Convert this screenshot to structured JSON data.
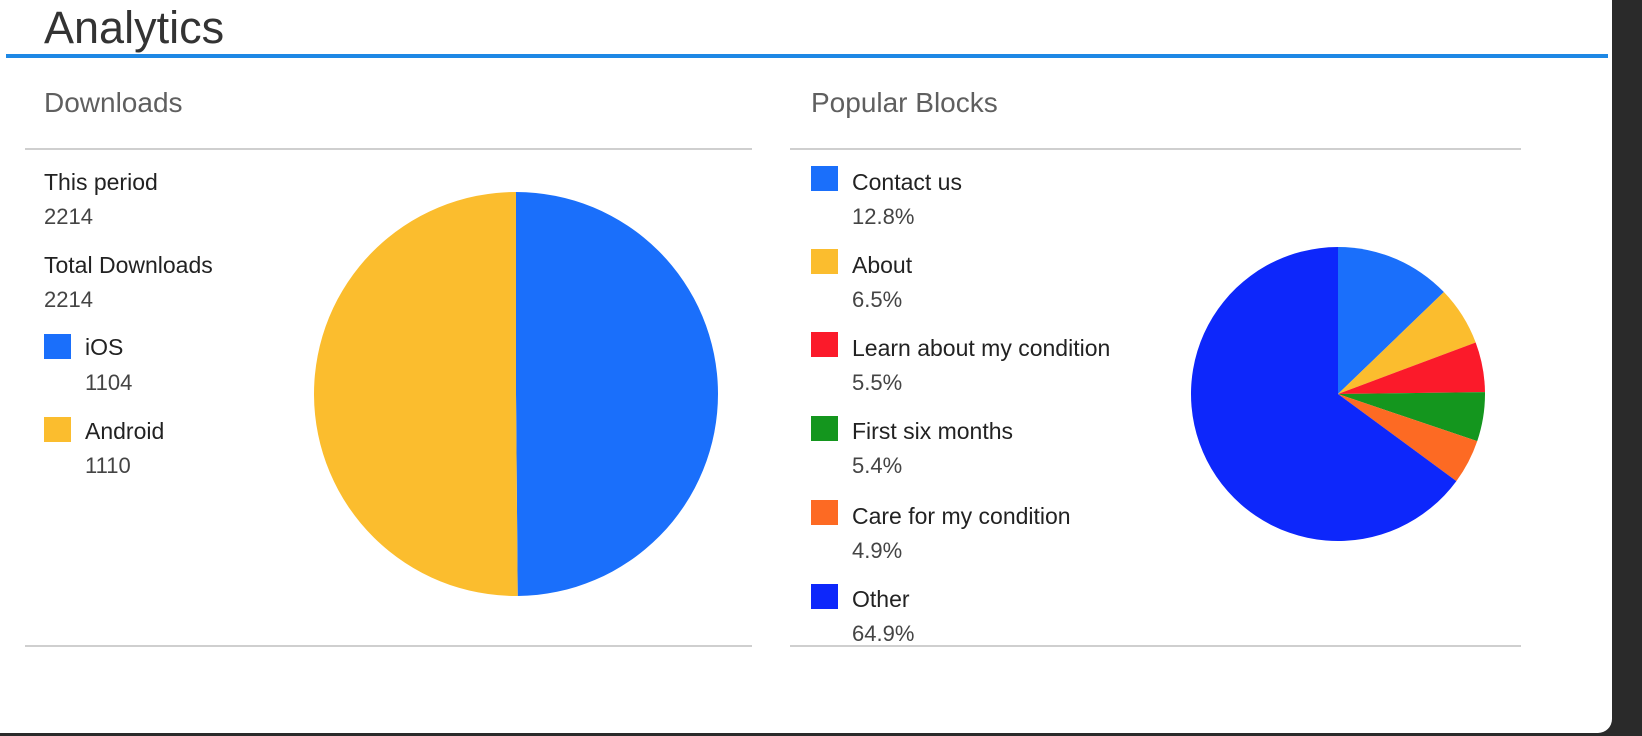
{
  "page": {
    "title": "Analytics"
  },
  "downloads": {
    "title": "Downloads",
    "this_period_label": "This period",
    "this_period_value": "2214",
    "total_label": "Total Downloads",
    "total_value": "2214"
  },
  "popular": {
    "title": "Popular Blocks"
  },
  "chart_data": [
    {
      "type": "pie",
      "title": "Downloads",
      "legend_position": "left",
      "slices": [
        {
          "label": "iOS",
          "value": 1104,
          "display": "1104",
          "color": "#1a6ffb"
        },
        {
          "label": "Android",
          "value": 1110,
          "display": "1110",
          "color": "#fbbd2e"
        }
      ]
    },
    {
      "type": "pie",
      "title": "Popular Blocks",
      "legend_position": "left",
      "slices": [
        {
          "label": "Contact us",
          "value": 12.8,
          "display": "12.8%",
          "color": "#1a6ffb"
        },
        {
          "label": "About",
          "value": 6.5,
          "display": "6.5%",
          "color": "#fbbd2e"
        },
        {
          "label": "Learn about my condition",
          "value": 5.5,
          "display": "5.5%",
          "color": "#fb1a2a"
        },
        {
          "label": "First six months",
          "value": 5.4,
          "display": "5.4%",
          "color": "#14961e"
        },
        {
          "label": "Care for my condition",
          "value": 4.9,
          "display": "4.9%",
          "color": "#fd6a23"
        },
        {
          "label": "Other",
          "value": 64.9,
          "display": "64.9%",
          "color": "#0d27fb"
        }
      ]
    }
  ]
}
